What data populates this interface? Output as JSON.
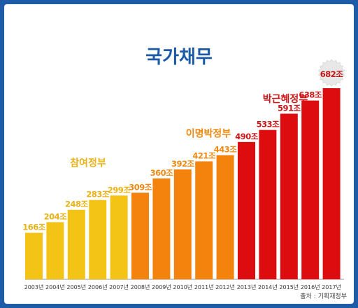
{
  "chart_data": {
    "type": "bar",
    "title": "국가채무",
    "categories": [
      "2003년",
      "2004년",
      "2005년",
      "2006년",
      "2007년",
      "2008년",
      "2009년",
      "2010년",
      "2011년",
      "2012년",
      "2013년",
      "2014년",
      "2015년",
      "2016년",
      "2017년"
    ],
    "values": [
      166,
      204,
      248,
      283,
      299,
      309,
      360,
      392,
      421,
      443,
      490,
      533,
      591,
      638,
      682
    ],
    "value_labels": [
      "166조",
      "204조",
      "248조",
      "283조",
      "299조",
      "309조",
      "360조",
      "392조",
      "421조",
      "443조",
      "490조",
      "533조",
      "591조",
      "638조",
      "682조"
    ],
    "unit": "조",
    "ylim": [
      0,
      682
    ],
    "periods": [
      {
        "name": "참여정부",
        "start": 0,
        "end": 4,
        "color": "#f3c416",
        "label_color": "#e9b215"
      },
      {
        "name": "이명박정부",
        "start": 5,
        "end": 9,
        "color": "#f4830e",
        "label_color": "#f08a12"
      },
      {
        "name": "박근혜정부",
        "start": 10,
        "end": 14,
        "color": "#dd0d0f",
        "label_color": "#cc1719"
      }
    ],
    "highlight": {
      "index": 14,
      "badge_color": "#e8e8e8",
      "text_color": "#c41416"
    },
    "source": "출처 : 기획재정부",
    "grid": false,
    "legend": "none"
  }
}
